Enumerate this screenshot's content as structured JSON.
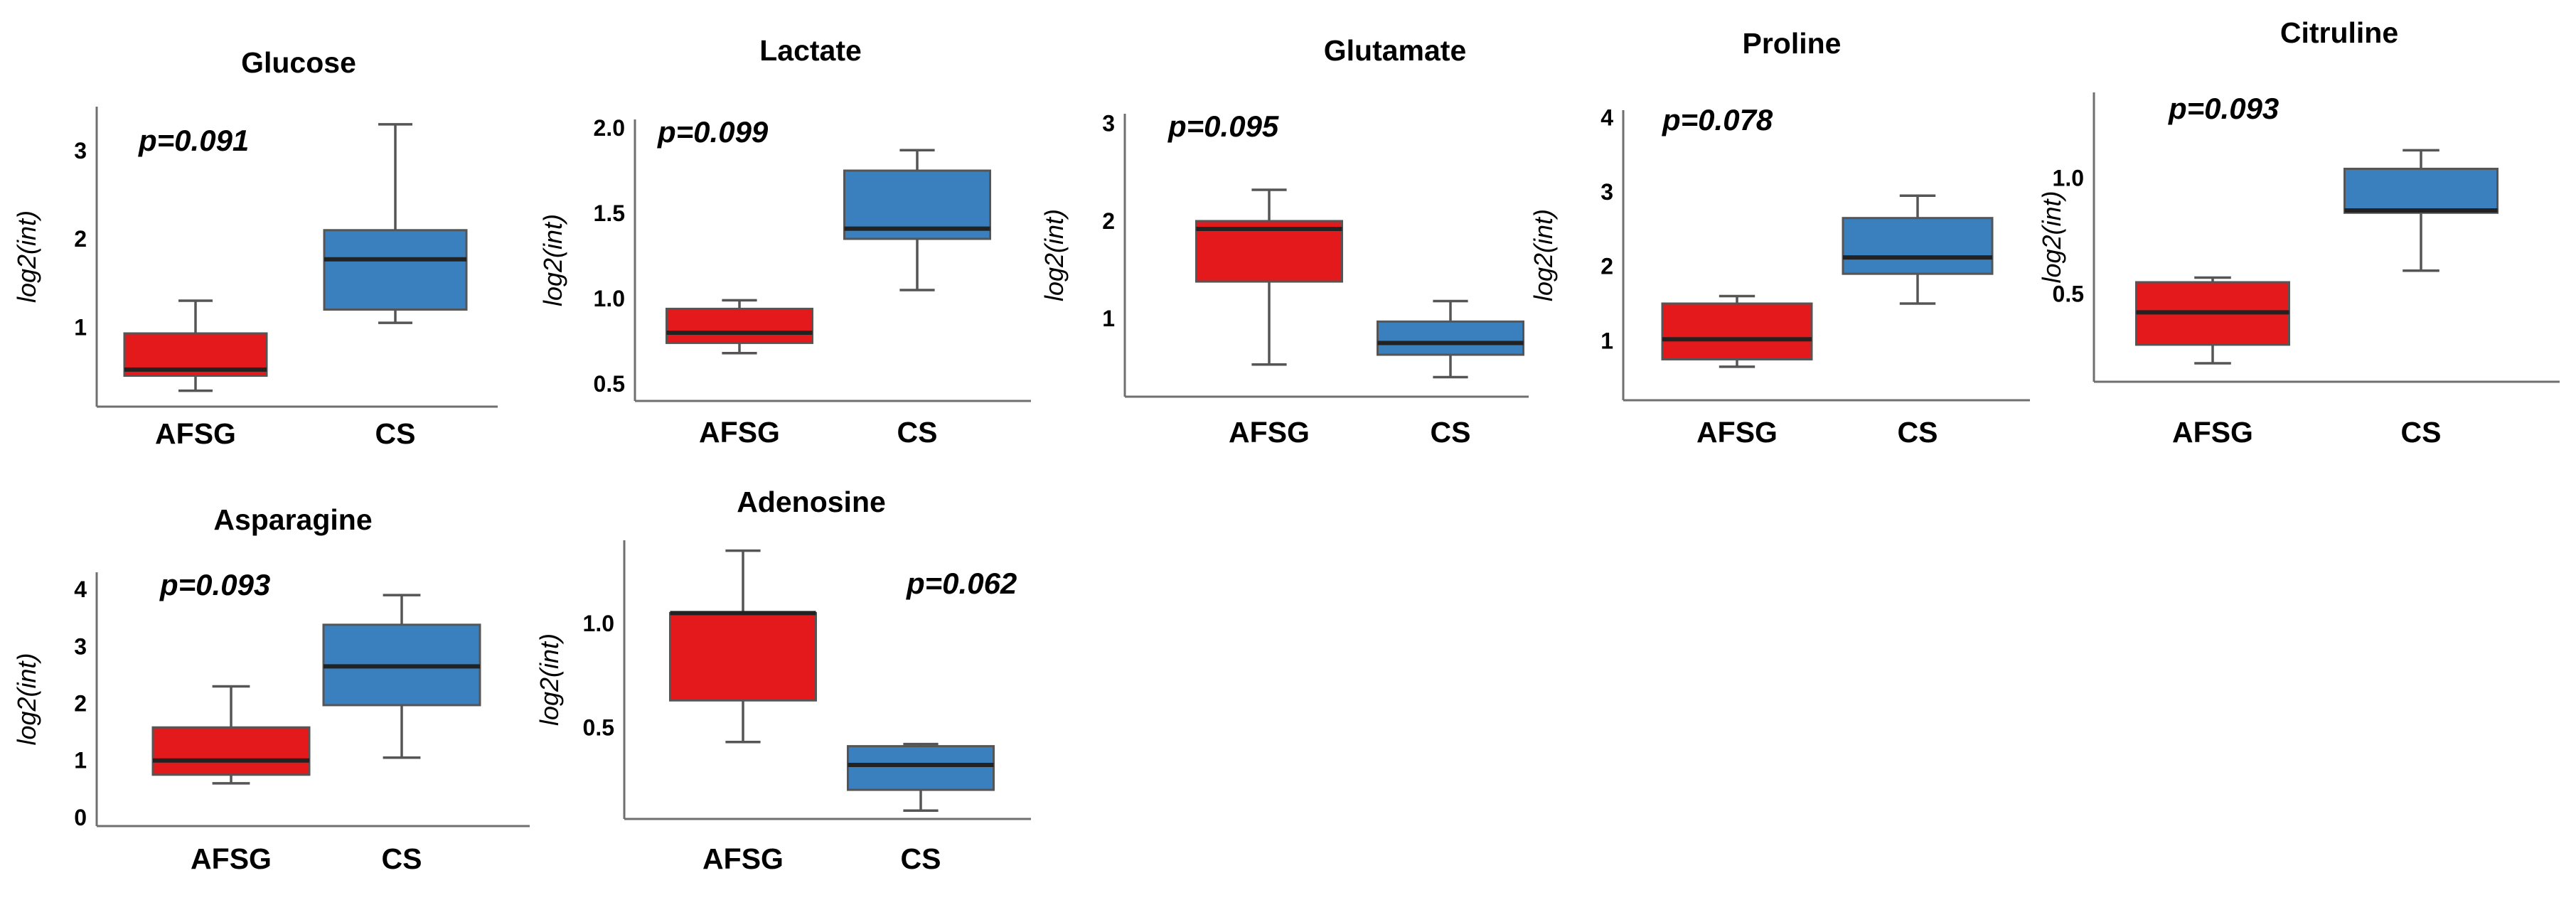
{
  "colors": {
    "AFSG": "#e3191c",
    "CS": "#3a7fbe"
  },
  "chart_data": [
    {
      "type": "boxplot",
      "title": "Glucose",
      "ylabel": "log2(int)",
      "pvalue": "p=0.091",
      "categories": [
        "AFSG",
        "CS"
      ],
      "yticks": [
        1,
        2,
        3
      ],
      "ylim": [
        0.1,
        3.5
      ],
      "series": [
        {
          "name": "AFSG",
          "min": 0.28,
          "q1": 0.45,
          "median": 0.52,
          "q3": 0.93,
          "max": 1.3
        },
        {
          "name": "CS",
          "min": 1.05,
          "q1": 1.2,
          "median": 1.77,
          "q3": 2.1,
          "max": 3.3
        }
      ]
    },
    {
      "type": "boxplot",
      "title": "Lactate",
      "ylabel": "log2(int)",
      "pvalue": "p=0.099",
      "categories": [
        "AFSG",
        "CS"
      ],
      "yticks": [
        "0.5",
        "1.0",
        "1.5",
        "2.0"
      ],
      "ylim": [
        0.4,
        2.05
      ],
      "series": [
        {
          "name": "AFSG",
          "min": 0.68,
          "q1": 0.74,
          "median": 0.8,
          "q3": 0.94,
          "max": 0.99
        },
        {
          "name": "CS",
          "min": 1.05,
          "q1": 1.35,
          "median": 1.41,
          "q3": 1.75,
          "max": 1.87
        }
      ]
    },
    {
      "type": "boxplot",
      "title": "Glutamate",
      "ylabel": "log2(int)",
      "pvalue": "p=0.095",
      "categories": [
        "AFSG",
        "CS"
      ],
      "yticks": [
        1,
        2,
        3
      ],
      "ylim": [
        0.2,
        3.1
      ],
      "series": [
        {
          "name": "AFSG",
          "min": 0.53,
          "q1": 1.38,
          "median": 1.92,
          "q3": 2.0,
          "max": 2.32
        },
        {
          "name": "CS",
          "min": 0.4,
          "q1": 0.63,
          "median": 0.75,
          "q3": 0.97,
          "max": 1.18
        }
      ]
    },
    {
      "type": "boxplot",
      "title": "Proline",
      "ylabel": "log2(int)",
      "pvalue": "p=0.078",
      "categories": [
        "AFSG",
        "CS"
      ],
      "yticks": [
        1,
        2,
        3,
        4
      ],
      "ylim": [
        0.2,
        4.1
      ],
      "series": [
        {
          "name": "AFSG",
          "min": 0.65,
          "q1": 0.75,
          "median": 1.02,
          "q3": 1.5,
          "max": 1.6
        },
        {
          "name": "CS",
          "min": 1.5,
          "q1": 1.9,
          "median": 2.12,
          "q3": 2.65,
          "max": 2.95
        }
      ]
    },
    {
      "type": "boxplot",
      "title": "Citruline",
      "ylabel": "log2(int)",
      "pvalue": "p=0.093",
      "categories": [
        "AFSG",
        "CS"
      ],
      "yticks": [
        "0.5",
        "1.0"
      ],
      "ylim": [
        0.12,
        1.37
      ],
      "series": [
        {
          "name": "AFSG",
          "min": 0.2,
          "q1": 0.28,
          "median": 0.42,
          "q3": 0.55,
          "max": 0.57
        },
        {
          "name": "CS",
          "min": 0.6,
          "q1": 0.85,
          "median": 0.86,
          "q3": 1.04,
          "max": 1.12
        }
      ]
    },
    {
      "type": "boxplot",
      "title": "Asparagine",
      "ylabel": "log2(int)",
      "pvalue": "p=0.093",
      "categories": [
        "AFSG",
        "CS"
      ],
      "yticks": [
        0,
        1,
        2,
        3,
        4
      ],
      "ylim": [
        -0.15,
        4.3
      ],
      "series": [
        {
          "name": "AFSG",
          "min": 0.6,
          "q1": 0.75,
          "median": 1.0,
          "q3": 1.58,
          "max": 2.3
        },
        {
          "name": "CS",
          "min": 1.05,
          "q1": 1.97,
          "median": 2.65,
          "q3": 3.38,
          "max": 3.9
        }
      ]
    },
    {
      "type": "boxplot",
      "title": "Adenosine",
      "ylabel": "log2(int)",
      "pvalue": "p=0.062",
      "categories": [
        "AFSG",
        "CS"
      ],
      "yticks": [
        "0.5",
        "1.0"
      ],
      "ylim": [
        0.06,
        1.4
      ],
      "series": [
        {
          "name": "AFSG",
          "min": 0.43,
          "q1": 0.63,
          "median": 1.05,
          "q3": 1.05,
          "max": 1.35
        },
        {
          "name": "CS",
          "min": 0.1,
          "q1": 0.2,
          "median": 0.32,
          "q3": 0.41,
          "max": 0.42
        }
      ]
    }
  ]
}
